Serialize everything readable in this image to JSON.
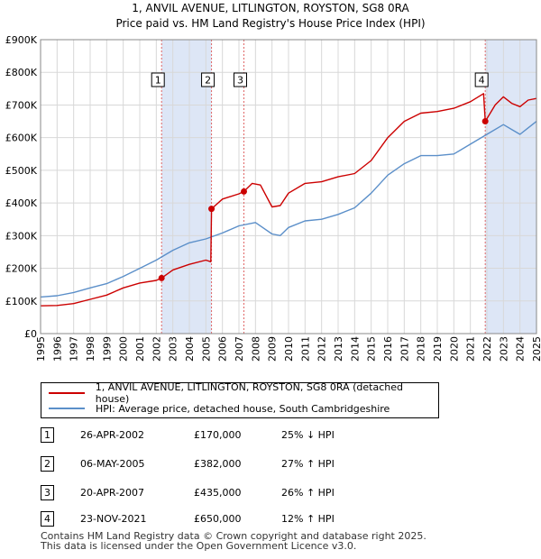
{
  "chart_data": {
    "type": "line",
    "title": "1, ANVIL AVENUE, LITLINGTON, ROYSTON, SG8 0RA",
    "subtitle": "Price paid vs. HM Land Registry's House Price Index (HPI)",
    "xlabel": "",
    "ylabel": "",
    "xlim": [
      1995,
      2025
    ],
    "ylim": [
      0,
      900000
    ],
    "grid": true,
    "y_ticks": [
      {
        "value": 0,
        "label": "£0"
      },
      {
        "value": 100000,
        "label": "£100K"
      },
      {
        "value": 200000,
        "label": "£200K"
      },
      {
        "value": 300000,
        "label": "£300K"
      },
      {
        "value": 400000,
        "label": "£400K"
      },
      {
        "value": 500000,
        "label": "£500K"
      },
      {
        "value": 600000,
        "label": "£600K"
      },
      {
        "value": 700000,
        "label": "£700K"
      },
      {
        "value": 800000,
        "label": "£800K"
      },
      {
        "value": 900000,
        "label": "£900K"
      }
    ],
    "x_ticks": [
      "1995",
      "1996",
      "1997",
      "1998",
      "1999",
      "2000",
      "2001",
      "2002",
      "2003",
      "2004",
      "2005",
      "2006",
      "2007",
      "2008",
      "2009",
      "2010",
      "2011",
      "2012",
      "2013",
      "2014",
      "2015",
      "2016",
      "2017",
      "2018",
      "2019",
      "2020",
      "2021",
      "2022",
      "2023",
      "2024",
      "2025"
    ],
    "shaded_periods": [
      [
        2002.32,
        2005.34
      ],
      [
        2021.9,
        2025
      ]
    ],
    "sales": [
      {
        "label": "1",
        "x": 2002.32,
        "price": 170000
      },
      {
        "label": "2",
        "x": 2005.34,
        "price": 382000
      },
      {
        "label": "3",
        "x": 2007.3,
        "price": 435000
      },
      {
        "label": "4",
        "x": 2021.9,
        "price": 650000
      }
    ],
    "series": [
      {
        "name": "1, ANVIL AVENUE, LITLINGTON, ROYSTON, SG8 0RA (detached house)",
        "color": "#cc0000",
        "points": [
          [
            1995,
            85000
          ],
          [
            1996,
            86000
          ],
          [
            1997,
            92000
          ],
          [
            1998,
            105000
          ],
          [
            1999,
            118000
          ],
          [
            2000,
            140000
          ],
          [
            2001,
            155000
          ],
          [
            2002,
            163000
          ],
          [
            2002.32,
            170000
          ],
          [
            2003,
            195000
          ],
          [
            2004,
            212000
          ],
          [
            2005,
            225000
          ],
          [
            2005.3,
            220000
          ],
          [
            2005.34,
            382000
          ],
          [
            2006,
            412000
          ],
          [
            2007,
            428000
          ],
          [
            2007.3,
            435000
          ],
          [
            2007.8,
            460000
          ],
          [
            2008.3,
            455000
          ],
          [
            2009,
            388000
          ],
          [
            2009.5,
            392000
          ],
          [
            2010,
            430000
          ],
          [
            2011,
            460000
          ],
          [
            2012,
            465000
          ],
          [
            2013,
            480000
          ],
          [
            2014,
            490000
          ],
          [
            2015,
            530000
          ],
          [
            2016,
            600000
          ],
          [
            2017,
            650000
          ],
          [
            2018,
            675000
          ],
          [
            2019,
            680000
          ],
          [
            2020,
            690000
          ],
          [
            2021,
            710000
          ],
          [
            2021.8,
            735000
          ],
          [
            2021.9,
            650000
          ],
          [
            2022.5,
            700000
          ],
          [
            2023,
            725000
          ],
          [
            2023.5,
            705000
          ],
          [
            2024,
            695000
          ],
          [
            2024.5,
            715000
          ],
          [
            2025,
            720000
          ]
        ]
      },
      {
        "name": "HPI: Average price, detached house, South Cambridgeshire",
        "color": "#5b8fc9",
        "points": [
          [
            1995,
            112000
          ],
          [
            1996,
            116000
          ],
          [
            1997,
            126000
          ],
          [
            1998,
            140000
          ],
          [
            1999,
            153000
          ],
          [
            2000,
            175000
          ],
          [
            2001,
            200000
          ],
          [
            2002,
            225000
          ],
          [
            2003,
            255000
          ],
          [
            2004,
            278000
          ],
          [
            2005,
            290000
          ],
          [
            2006,
            308000
          ],
          [
            2007,
            330000
          ],
          [
            2008,
            340000
          ],
          [
            2009,
            305000
          ],
          [
            2009.5,
            300000
          ],
          [
            2010,
            325000
          ],
          [
            2011,
            345000
          ],
          [
            2012,
            350000
          ],
          [
            2013,
            365000
          ],
          [
            2014,
            385000
          ],
          [
            2015,
            430000
          ],
          [
            2016,
            485000
          ],
          [
            2017,
            520000
          ],
          [
            2018,
            545000
          ],
          [
            2019,
            545000
          ],
          [
            2020,
            550000
          ],
          [
            2021,
            580000
          ],
          [
            2022,
            610000
          ],
          [
            2023,
            640000
          ],
          [
            2023.5,
            625000
          ],
          [
            2024,
            610000
          ],
          [
            2024.5,
            630000
          ],
          [
            2025,
            650000
          ]
        ]
      }
    ]
  },
  "legend": {
    "property": "1, ANVIL AVENUE, LITLINGTON, ROYSTON, SG8 0RA (detached house)",
    "hpi": "HPI: Average price, detached house, South Cambridgeshire"
  },
  "transactions": [
    {
      "num": "1",
      "date": "26-APR-2002",
      "price": "£170,000",
      "hpi": "25% ↓ HPI"
    },
    {
      "num": "2",
      "date": "06-MAY-2005",
      "price": "£382,000",
      "hpi": "27% ↑ HPI"
    },
    {
      "num": "3",
      "date": "20-APR-2007",
      "price": "£435,000",
      "hpi": "26% ↑ HPI"
    },
    {
      "num": "4",
      "date": "23-NOV-2021",
      "price": "£650,000",
      "hpi": "12% ↑ HPI"
    }
  ],
  "footer": {
    "line1": "Contains HM Land Registry data © Crown copyright and database right 2025.",
    "line2": "This data is licensed under the Open Government Licence v3.0."
  }
}
